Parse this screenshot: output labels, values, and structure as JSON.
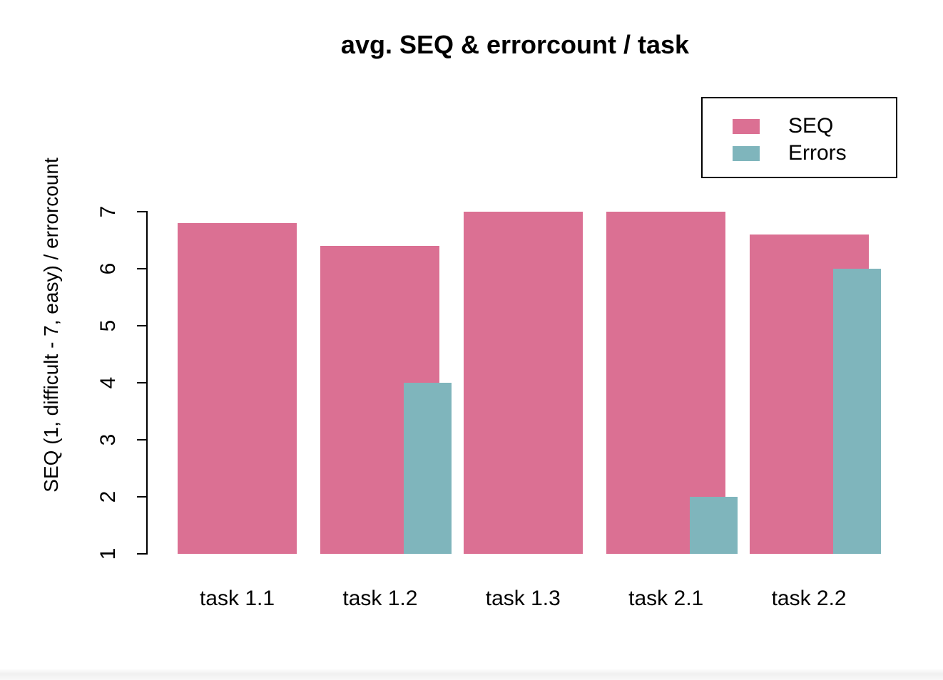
{
  "chart_data": {
    "type": "bar",
    "title": "avg. SEQ & errorcount / task",
    "xlabel": "",
    "ylabel": "SEQ (1, difficult - 7, easy) / errorcount",
    "categories": [
      "task 1.1",
      "task 1.2",
      "task 1.3",
      "task 2.1",
      "task 2.2"
    ],
    "series": [
      {
        "name": "SEQ",
        "color": "#DB7093",
        "values": [
          6.8,
          6.4,
          7,
          7,
          6.6
        ]
      },
      {
        "name": "Errors",
        "color": "#7FB5BC",
        "values": [
          0,
          4,
          0,
          2,
          6
        ]
      }
    ],
    "ylim": [
      1,
      7
    ],
    "yticks": [
      1,
      2,
      3,
      4,
      5,
      6,
      7
    ],
    "grid": false,
    "legend_position": "top-right",
    "baseline": 1,
    "bar_layout": "Errors bars are narrower and overlap the right edge of each SEQ bar; bars rise from baseline value 1; no x-axis line or plot box drawn"
  },
  "legend": {
    "entries": [
      {
        "label": "SEQ"
      },
      {
        "label": "Errors"
      }
    ]
  }
}
